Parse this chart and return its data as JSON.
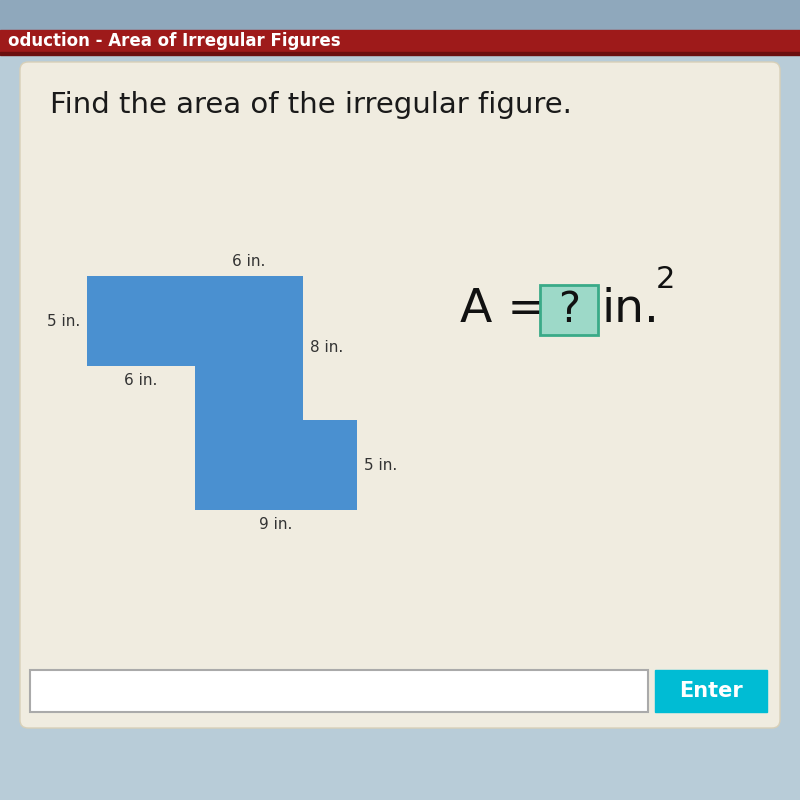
{
  "title": "Find the area of the irregular figure.",
  "header_text": "oduction - Area of Irregular Figures",
  "header_bg": "#9e1a1a",
  "header_text_color": "#ffffff",
  "page_bg": "#b8ccd8",
  "card_bg": "#f0ece0",
  "figure_color": "#4a90d0",
  "labels": {
    "top": "6 in.",
    "left": "5 in.",
    "right_upper": "8 in.",
    "bottom_left": "6 in.",
    "right_lower": "5 in.",
    "bottom": "9 in."
  },
  "formula_box_bg": "#9dd9c8",
  "formula_box_border": "#3aaa88",
  "input_bar_bg": "#ffffff",
  "input_bar_border": "#cccccc",
  "enter_btn_bg": "#00bcd4",
  "enter_btn_text": "Enter",
  "enter_btn_text_color": "#ffffff",
  "scale": 18
}
